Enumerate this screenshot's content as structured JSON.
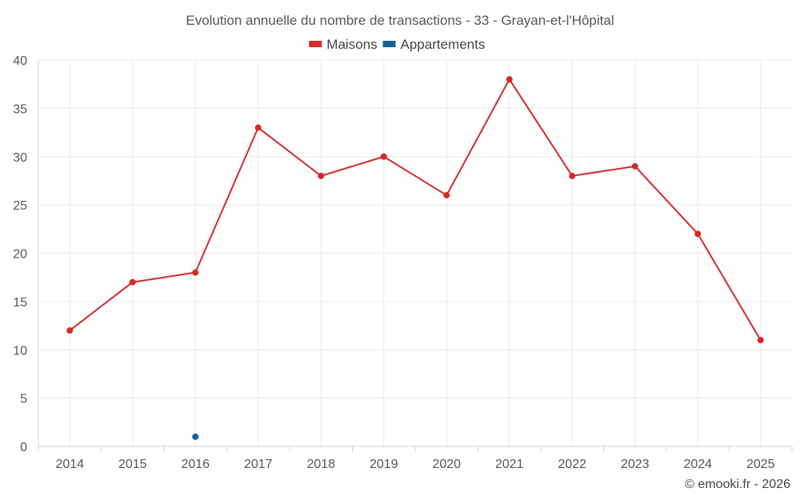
{
  "chart_data": {
    "type": "line",
    "title": "Evolution annuelle du nombre de transactions - 33 - Grayan-et-l'Hôpital",
    "x": [
      "2014",
      "2015",
      "2016",
      "2017",
      "2018",
      "2019",
      "2020",
      "2021",
      "2022",
      "2023",
      "2024",
      "2025"
    ],
    "series": [
      {
        "name": "Maisons",
        "color": "#d42a2a",
        "values": [
          12,
          17,
          18,
          33,
          28,
          30,
          26,
          38,
          28,
          29,
          22,
          11
        ]
      },
      {
        "name": "Appartements",
        "color": "#0f6496",
        "values": [
          null,
          null,
          1,
          null,
          null,
          null,
          null,
          null,
          null,
          null,
          null,
          null
        ]
      }
    ],
    "ylim": [
      0,
      40
    ],
    "yticks": [
      "0",
      "5",
      "10",
      "15",
      "20",
      "25",
      "30",
      "35",
      "40"
    ],
    "grid": true,
    "legend_position": "top-center"
  },
  "credit": "© emooki.fr - 2026"
}
